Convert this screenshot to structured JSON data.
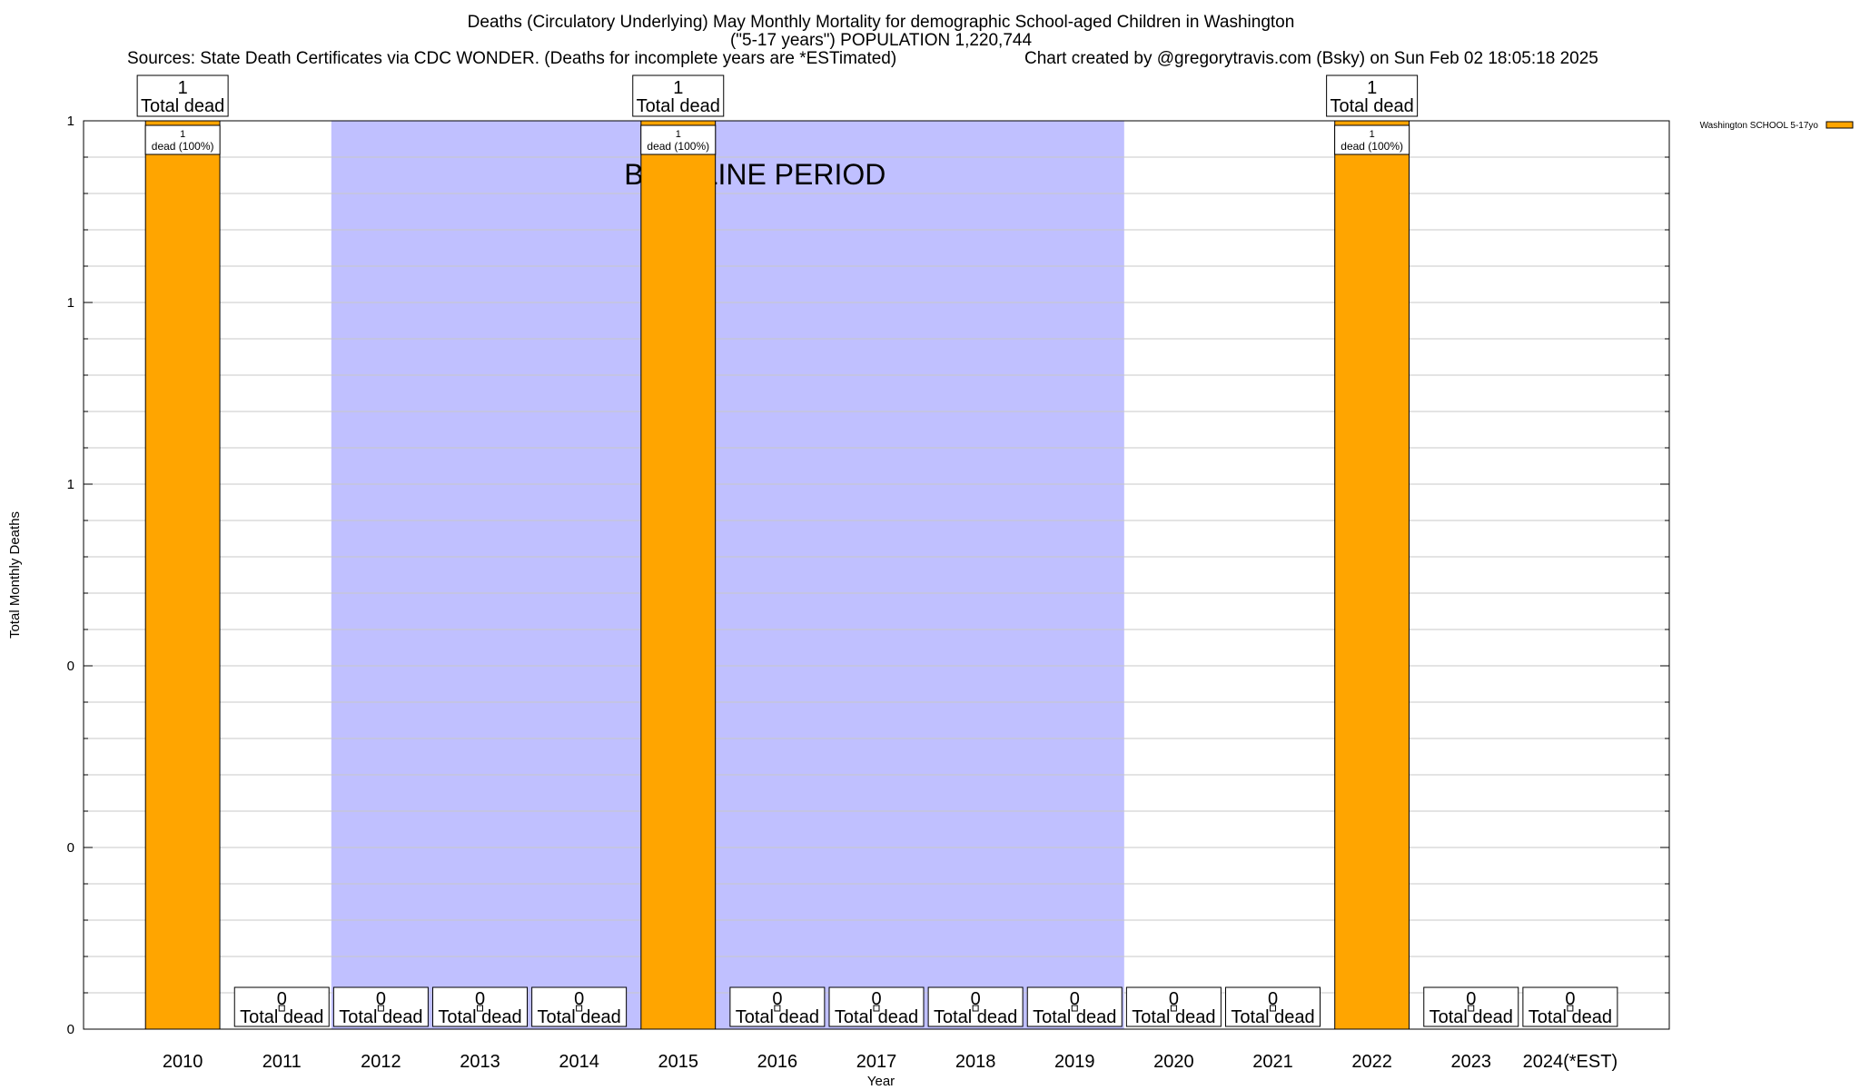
{
  "header": {
    "title_line1": "Deaths (Circulatory Underlying) May Monthly Mortality for demographic School-aged Children in Washington",
    "title_line2": "(\"5-17 years\") POPULATION 1,220,744",
    "sources": "Sources: State Death Certificates via CDC WONDER. (Deaths for incomplete years are *ESTimated)",
    "credit": "Chart created by @gregorytravis.com (Bsky) on Sun Feb 02 18:05:18 2025"
  },
  "chart_data": {
    "type": "bar",
    "title": "Deaths (Circulatory Underlying) May Monthly Mortality for demographic School-aged Children in Washington",
    "xlabel": "Year",
    "ylabel": "Total Monthly Deaths",
    "categories": [
      "2010",
      "2011",
      "2012",
      "2013",
      "2014",
      "2015",
      "2016",
      "2017",
      "2018",
      "2019",
      "2020",
      "2021",
      "2022",
      "2023",
      "2024(*EST)"
    ],
    "series": [
      {
        "name": "Washington SCHOOL 5-17yo",
        "color": "#ffa500",
        "values": [
          1,
          0,
          0,
          0,
          0,
          1,
          0,
          0,
          0,
          0,
          0,
          0,
          1,
          0,
          0
        ]
      }
    ],
    "ylim": [
      0,
      1
    ],
    "yticks": [
      0,
      0.2,
      0.4,
      0.6,
      0.8,
      1
    ],
    "ytick_labels": [
      "0",
      "0",
      "0",
      "1",
      "1",
      "1"
    ],
    "total_label_suffix": "Total dead",
    "segment_labels": [
      "1\ndead (100%)",
      "",
      "",
      "",
      "",
      "1\ndead (100%)",
      "",
      "",
      "",
      "",
      "",
      "",
      "1\ndead (100%)",
      "",
      ""
    ],
    "baseline_period": {
      "label": "BASELINE PERIOD",
      "start": "2012",
      "end": "2019",
      "color": "#c0c0ff"
    },
    "legend_position": "top-right",
    "grid": true,
    "bar_color": "#ffa500"
  }
}
